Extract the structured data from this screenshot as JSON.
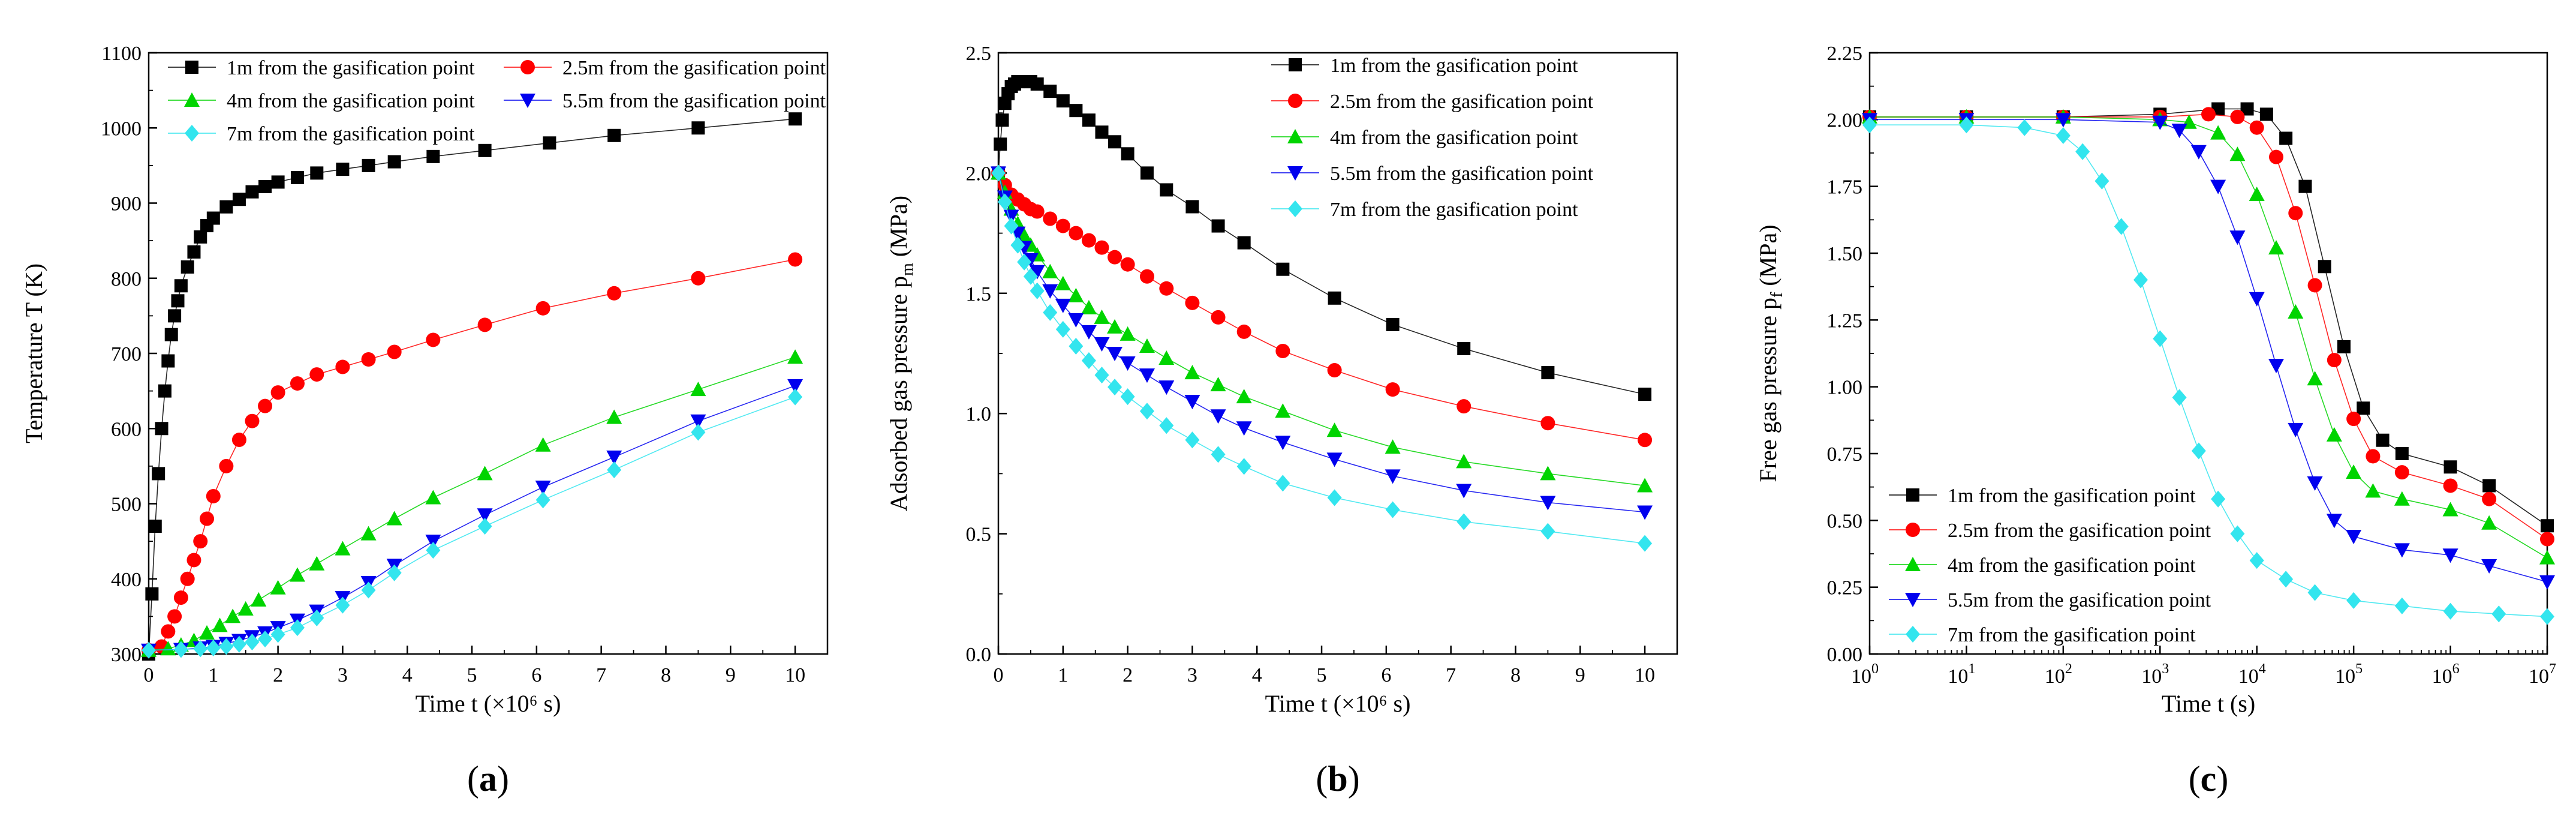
{
  "figure": {
    "series_colors": [
      "#000000",
      "#ff0000",
      "#00d400",
      "#0000ee",
      "#33e5ee"
    ],
    "markers": [
      "square",
      "circle",
      "triangle-up",
      "triangle-down",
      "diamond"
    ]
  },
  "chart_data": [
    {
      "panel": "a",
      "type": "line",
      "title": "",
      "xlabel": "Time t (×10⁶ s)",
      "ylabel": "Temperature T (K)",
      "xlim": [
        0,
        10.5
      ],
      "ylim": [
        300,
        1100
      ],
      "xticks": [
        0,
        1,
        2,
        3,
        4,
        5,
        6,
        7,
        8,
        9,
        10
      ],
      "yticks": [
        300,
        400,
        500,
        600,
        700,
        800,
        900,
        1000,
        1100
      ],
      "xscale": "linear",
      "legend": {
        "placement": "top",
        "columns": 2
      },
      "label_text": {
        "open": "(",
        "letter": "a",
        "close": ")"
      },
      "series": [
        {
          "name": "1m from the gasification point",
          "color": "#000000",
          "marker": "square",
          "x": [
            0,
            0.05,
            0.1,
            0.15,
            0.2,
            0.25,
            0.3,
            0.35,
            0.4,
            0.45,
            0.5,
            0.6,
            0.7,
            0.8,
            0.9,
            1.0,
            1.2,
            1.4,
            1.6,
            1.8,
            2.0,
            2.3,
            2.6,
            3.0,
            3.4,
            3.8,
            4.4,
            5.2,
            6.2,
            7.2,
            8.5,
            10
          ],
          "y": [
            300,
            380,
            470,
            540,
            600,
            650,
            690,
            725,
            750,
            770,
            790,
            815,
            835,
            855,
            870,
            880,
            895,
            905,
            915,
            922,
            928,
            934,
            940,
            945,
            950,
            955,
            962,
            970,
            980,
            990,
            1000,
            1012
          ]
        },
        {
          "name": "2.5m from the gasification point",
          "color": "#ff0000",
          "marker": "circle",
          "x": [
            0,
            0.2,
            0.3,
            0.4,
            0.5,
            0.6,
            0.7,
            0.8,
            0.9,
            1.0,
            1.2,
            1.4,
            1.6,
            1.8,
            2.0,
            2.3,
            2.6,
            3.0,
            3.4,
            3.8,
            4.4,
            5.2,
            6.1,
            7.2,
            8.5,
            10
          ],
          "y": [
            305,
            310,
            330,
            350,
            375,
            400,
            425,
            450,
            480,
            510,
            550,
            585,
            610,
            630,
            648,
            660,
            672,
            682,
            692,
            702,
            718,
            738,
            760,
            780,
            800,
            825
          ]
        },
        {
          "name": "4m from the gasification point",
          "color": "#00d400",
          "marker": "triangle-up",
          "x": [
            0,
            0.3,
            0.5,
            0.7,
            0.9,
            1.1,
            1.3,
            1.5,
            1.7,
            2.0,
            2.3,
            2.6,
            3.0,
            3.4,
            3.8,
            4.4,
            5.2,
            6.1,
            7.2,
            8.5,
            10
          ],
          "y": [
            305,
            307,
            312,
            318,
            328,
            338,
            350,
            360,
            372,
            388,
            405,
            420,
            440,
            460,
            480,
            508,
            540,
            578,
            615,
            652,
            695
          ]
        },
        {
          "name": "5.5m from the gasification point",
          "color": "#0000ee",
          "marker": "triangle-down",
          "x": [
            0,
            0.5,
            0.8,
            1.0,
            1.2,
            1.4,
            1.6,
            1.8,
            2.0,
            2.3,
            2.6,
            3.0,
            3.4,
            3.8,
            4.4,
            5.2,
            6.1,
            7.2,
            8.5,
            10
          ],
          "y": [
            305,
            306,
            308,
            310,
            314,
            318,
            323,
            328,
            335,
            345,
            357,
            375,
            395,
            418,
            450,
            485,
            522,
            562,
            610,
            657
          ]
        },
        {
          "name": "7m from the gasification point",
          "color": "#33e5ee",
          "marker": "diamond",
          "x": [
            0,
            0.5,
            0.8,
            1.0,
            1.2,
            1.4,
            1.6,
            1.8,
            2.0,
            2.3,
            2.6,
            3.0,
            3.4,
            3.8,
            4.4,
            5.2,
            6.1,
            7.2,
            8.5,
            10
          ],
          "y": [
            305,
            306,
            307,
            308,
            310,
            313,
            316,
            320,
            326,
            335,
            348,
            365,
            385,
            408,
            438,
            470,
            505,
            545,
            595,
            642
          ]
        }
      ]
    },
    {
      "panel": "b",
      "type": "line",
      "title": "",
      "xlabel": "Time t (×10⁶ s)",
      "ylabel": "Adsorbed gas pressure p",
      "ylabel_sub": "m",
      "ylabel_unit": " (MPa)",
      "xlim": [
        0,
        10.5
      ],
      "ylim": [
        0,
        2.5
      ],
      "xticks": [
        0,
        1,
        2,
        3,
        4,
        5,
        6,
        7,
        8,
        9,
        10
      ],
      "yticks": [
        0.0,
        0.5,
        1.0,
        1.5,
        2.0,
        2.5
      ],
      "yticklabels": [
        "0.0",
        "0.5",
        "1.0",
        "1.5",
        "2.0",
        "2.5"
      ],
      "xscale": "linear",
      "legend": {
        "placement": "top-right",
        "columns": 1
      },
      "label_text": {
        "open": "(",
        "letter": "b",
        "close": ")"
      },
      "series": [
        {
          "name": "1m from the gasification point",
          "color": "#000000",
          "marker": "square",
          "x": [
            0,
            0.03,
            0.06,
            0.1,
            0.15,
            0.2,
            0.25,
            0.3,
            0.4,
            0.5,
            0.6,
            0.8,
            1.0,
            1.2,
            1.4,
            1.6,
            1.8,
            2.0,
            2.3,
            2.6,
            3.0,
            3.4,
            3.8,
            4.4,
            5.2,
            6.1,
            7.2,
            8.5,
            10
          ],
          "y": [
            2.0,
            2.12,
            2.22,
            2.29,
            2.33,
            2.36,
            2.37,
            2.38,
            2.38,
            2.38,
            2.37,
            2.34,
            2.3,
            2.26,
            2.22,
            2.17,
            2.13,
            2.08,
            2.0,
            1.93,
            1.86,
            1.78,
            1.71,
            1.6,
            1.48,
            1.37,
            1.27,
            1.17,
            1.08
          ]
        },
        {
          "name": "2.5m from the gasification point",
          "color": "#ff0000",
          "marker": "circle",
          "x": [
            0,
            0.1,
            0.2,
            0.3,
            0.4,
            0.5,
            0.6,
            0.8,
            1.0,
            1.2,
            1.4,
            1.6,
            1.8,
            2.0,
            2.3,
            2.6,
            3.0,
            3.4,
            3.8,
            4.4,
            5.2,
            6.1,
            7.2,
            8.5,
            10
          ],
          "y": [
            2.0,
            1.95,
            1.91,
            1.89,
            1.87,
            1.85,
            1.84,
            1.81,
            1.78,
            1.75,
            1.72,
            1.69,
            1.65,
            1.62,
            1.57,
            1.52,
            1.46,
            1.4,
            1.34,
            1.26,
            1.18,
            1.1,
            1.03,
            0.96,
            0.89
          ]
        },
        {
          "name": "4m from the gasification point",
          "color": "#00d400",
          "marker": "triangle-up",
          "x": [
            0,
            0.1,
            0.2,
            0.3,
            0.4,
            0.5,
            0.6,
            0.8,
            1.0,
            1.2,
            1.4,
            1.6,
            1.8,
            2.0,
            2.3,
            2.6,
            3.0,
            3.4,
            3.8,
            4.4,
            5.2,
            6.1,
            7.2,
            8.5,
            10
          ],
          "y": [
            2.0,
            1.92,
            1.85,
            1.79,
            1.74,
            1.7,
            1.66,
            1.59,
            1.54,
            1.49,
            1.44,
            1.4,
            1.36,
            1.33,
            1.28,
            1.23,
            1.17,
            1.12,
            1.07,
            1.01,
            0.93,
            0.86,
            0.8,
            0.75,
            0.7
          ]
        },
        {
          "name": "5.5m from the gasification point",
          "color": "#0000ee",
          "marker": "triangle-down",
          "x": [
            0,
            0.1,
            0.2,
            0.3,
            0.4,
            0.5,
            0.6,
            0.8,
            1.0,
            1.2,
            1.4,
            1.6,
            1.8,
            2.0,
            2.3,
            2.6,
            3.0,
            3.4,
            3.8,
            4.4,
            5.2,
            6.1,
            7.2,
            8.5,
            10
          ],
          "y": [
            2.0,
            1.9,
            1.82,
            1.75,
            1.69,
            1.64,
            1.59,
            1.51,
            1.45,
            1.39,
            1.34,
            1.29,
            1.25,
            1.21,
            1.16,
            1.11,
            1.05,
            0.99,
            0.94,
            0.88,
            0.81,
            0.74,
            0.68,
            0.63,
            0.59
          ]
        },
        {
          "name": "7m from the gasification point",
          "color": "#33e5ee",
          "marker": "diamond",
          "x": [
            0,
            0.1,
            0.2,
            0.3,
            0.4,
            0.5,
            0.6,
            0.8,
            1.0,
            1.2,
            1.4,
            1.6,
            1.8,
            2.0,
            2.3,
            2.6,
            3.0,
            3.4,
            3.8,
            4.4,
            5.2,
            6.1,
            7.2,
            8.5,
            10
          ],
          "y": [
            2.0,
            1.88,
            1.78,
            1.7,
            1.63,
            1.57,
            1.51,
            1.42,
            1.35,
            1.28,
            1.22,
            1.16,
            1.11,
            1.07,
            1.01,
            0.95,
            0.89,
            0.83,
            0.78,
            0.71,
            0.65,
            0.6,
            0.55,
            0.51,
            0.46
          ]
        }
      ]
    },
    {
      "panel": "c",
      "type": "line",
      "title": "",
      "xlabel": "Time t (s)",
      "ylabel": "Free gas pressure p",
      "ylabel_sub": "f",
      "ylabel_unit": " (MPa)",
      "xlim": [
        1,
        10000000
      ],
      "ylim": [
        0,
        2.25
      ],
      "xscale": "log",
      "xticks": [
        1,
        10,
        100,
        1000,
        10000,
        100000,
        1000000,
        10000000
      ],
      "xtick_base": "10",
      "xtick_exponents": [
        "0",
        "1",
        "2",
        "3",
        "4",
        "5",
        "6",
        "7"
      ],
      "yticks": [
        0.0,
        0.25,
        0.5,
        0.75,
        1.0,
        1.25,
        1.5,
        1.75,
        2.0,
        2.25
      ],
      "yticklabels": [
        "0.00",
        "0.25",
        "0.50",
        "0.75",
        "1.00",
        "1.25",
        "1.50",
        "1.75",
        "2.00",
        "2.25"
      ],
      "legend": {
        "placement": "bottom-left",
        "columns": 1
      },
      "label_text": {
        "open": "(",
        "letter": "c",
        "close": ")"
      },
      "series": [
        {
          "name": "1m from the gasification point",
          "color": "#000000",
          "marker": "square",
          "logx": [
            0,
            1,
            2,
            3,
            3.6,
            3.9,
            4.1,
            4.3,
            4.5,
            4.7,
            4.9,
            5.1,
            5.3,
            5.5,
            6.0,
            6.4,
            7.0
          ],
          "y": [
            2.01,
            2.01,
            2.01,
            2.02,
            2.04,
            2.04,
            2.02,
            1.93,
            1.75,
            1.45,
            1.15,
            0.92,
            0.8,
            0.75,
            0.7,
            0.63,
            0.48
          ]
        },
        {
          "name": "2.5m from the gasification point",
          "color": "#ff0000",
          "marker": "circle",
          "logx": [
            0,
            1,
            2,
            3,
            3.5,
            3.8,
            4.0,
            4.2,
            4.4,
            4.6,
            4.8,
            5.0,
            5.2,
            5.5,
            6.0,
            6.4,
            7.0
          ],
          "y": [
            2.01,
            2.01,
            2.01,
            2.01,
            2.02,
            2.01,
            1.97,
            1.86,
            1.65,
            1.38,
            1.1,
            0.88,
            0.74,
            0.68,
            0.63,
            0.58,
            0.43
          ]
        },
        {
          "name": "4m from the gasification point",
          "color": "#00d400",
          "marker": "triangle-up",
          "logx": [
            0,
            1,
            2,
            3,
            3.3,
            3.6,
            3.8,
            4.0,
            4.2,
            4.4,
            4.6,
            4.8,
            5.0,
            5.2,
            5.5,
            6.0,
            6.4,
            7.0
          ],
          "y": [
            2.01,
            2.01,
            2.01,
            2.0,
            1.99,
            1.95,
            1.87,
            1.72,
            1.52,
            1.28,
            1.03,
            0.82,
            0.68,
            0.61,
            0.58,
            0.54,
            0.49,
            0.36
          ]
        },
        {
          "name": "5.5m from the gasification point",
          "color": "#0000ee",
          "marker": "triangle-down",
          "logx": [
            0,
            1,
            2,
            3,
            3.2,
            3.4,
            3.6,
            3.8,
            4.0,
            4.2,
            4.4,
            4.6,
            4.8,
            5.0,
            5.5,
            6.0,
            6.4,
            7.0
          ],
          "y": [
            2.0,
            2.0,
            2.0,
            1.99,
            1.96,
            1.88,
            1.75,
            1.56,
            1.33,
            1.08,
            0.84,
            0.64,
            0.5,
            0.44,
            0.39,
            0.37,
            0.33,
            0.27
          ]
        },
        {
          "name": "7m from the gasification point",
          "color": "#33e5ee",
          "marker": "diamond",
          "logx": [
            0,
            1,
            1.6,
            2.0,
            2.2,
            2.4,
            2.6,
            2.8,
            3.0,
            3.2,
            3.4,
            3.6,
            3.8,
            4.0,
            4.3,
            4.6,
            5.0,
            5.5,
            6.0,
            6.5,
            7.0
          ],
          "y": [
            1.98,
            1.98,
            1.97,
            1.94,
            1.88,
            1.77,
            1.6,
            1.4,
            1.18,
            0.96,
            0.76,
            0.58,
            0.45,
            0.35,
            0.28,
            0.23,
            0.2,
            0.18,
            0.16,
            0.15,
            0.14
          ]
        }
      ]
    }
  ]
}
